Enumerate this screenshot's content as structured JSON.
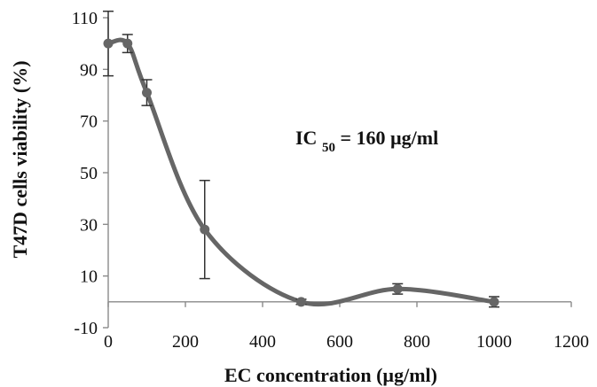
{
  "chart_data": {
    "type": "line",
    "title": "",
    "xlabel": "EC concentration (µg/ml)",
    "ylabel": "T47D cells viability (%)",
    "annotation": {
      "prefix": "IC",
      "subscript": "50",
      "suffix": " = 160 µg/ml"
    },
    "xlim": [
      0,
      1200
    ],
    "ylim": [
      -10,
      110
    ],
    "xticks": [
      0,
      200,
      400,
      600,
      800,
      1000,
      1200
    ],
    "yticks": [
      -10,
      10,
      30,
      50,
      70,
      90,
      110
    ],
    "x": [
      0,
      50,
      100,
      250,
      500,
      750,
      1000
    ],
    "values": [
      100,
      100,
      81,
      28,
      0,
      5,
      0
    ],
    "error": [
      12.5,
      3.5,
      5,
      19,
      1,
      2,
      2
    ],
    "smooth": true,
    "grid": false,
    "legend": false,
    "colors": {
      "series": "#666666",
      "axis": "#8a8a8a",
      "error": "#333333"
    }
  }
}
